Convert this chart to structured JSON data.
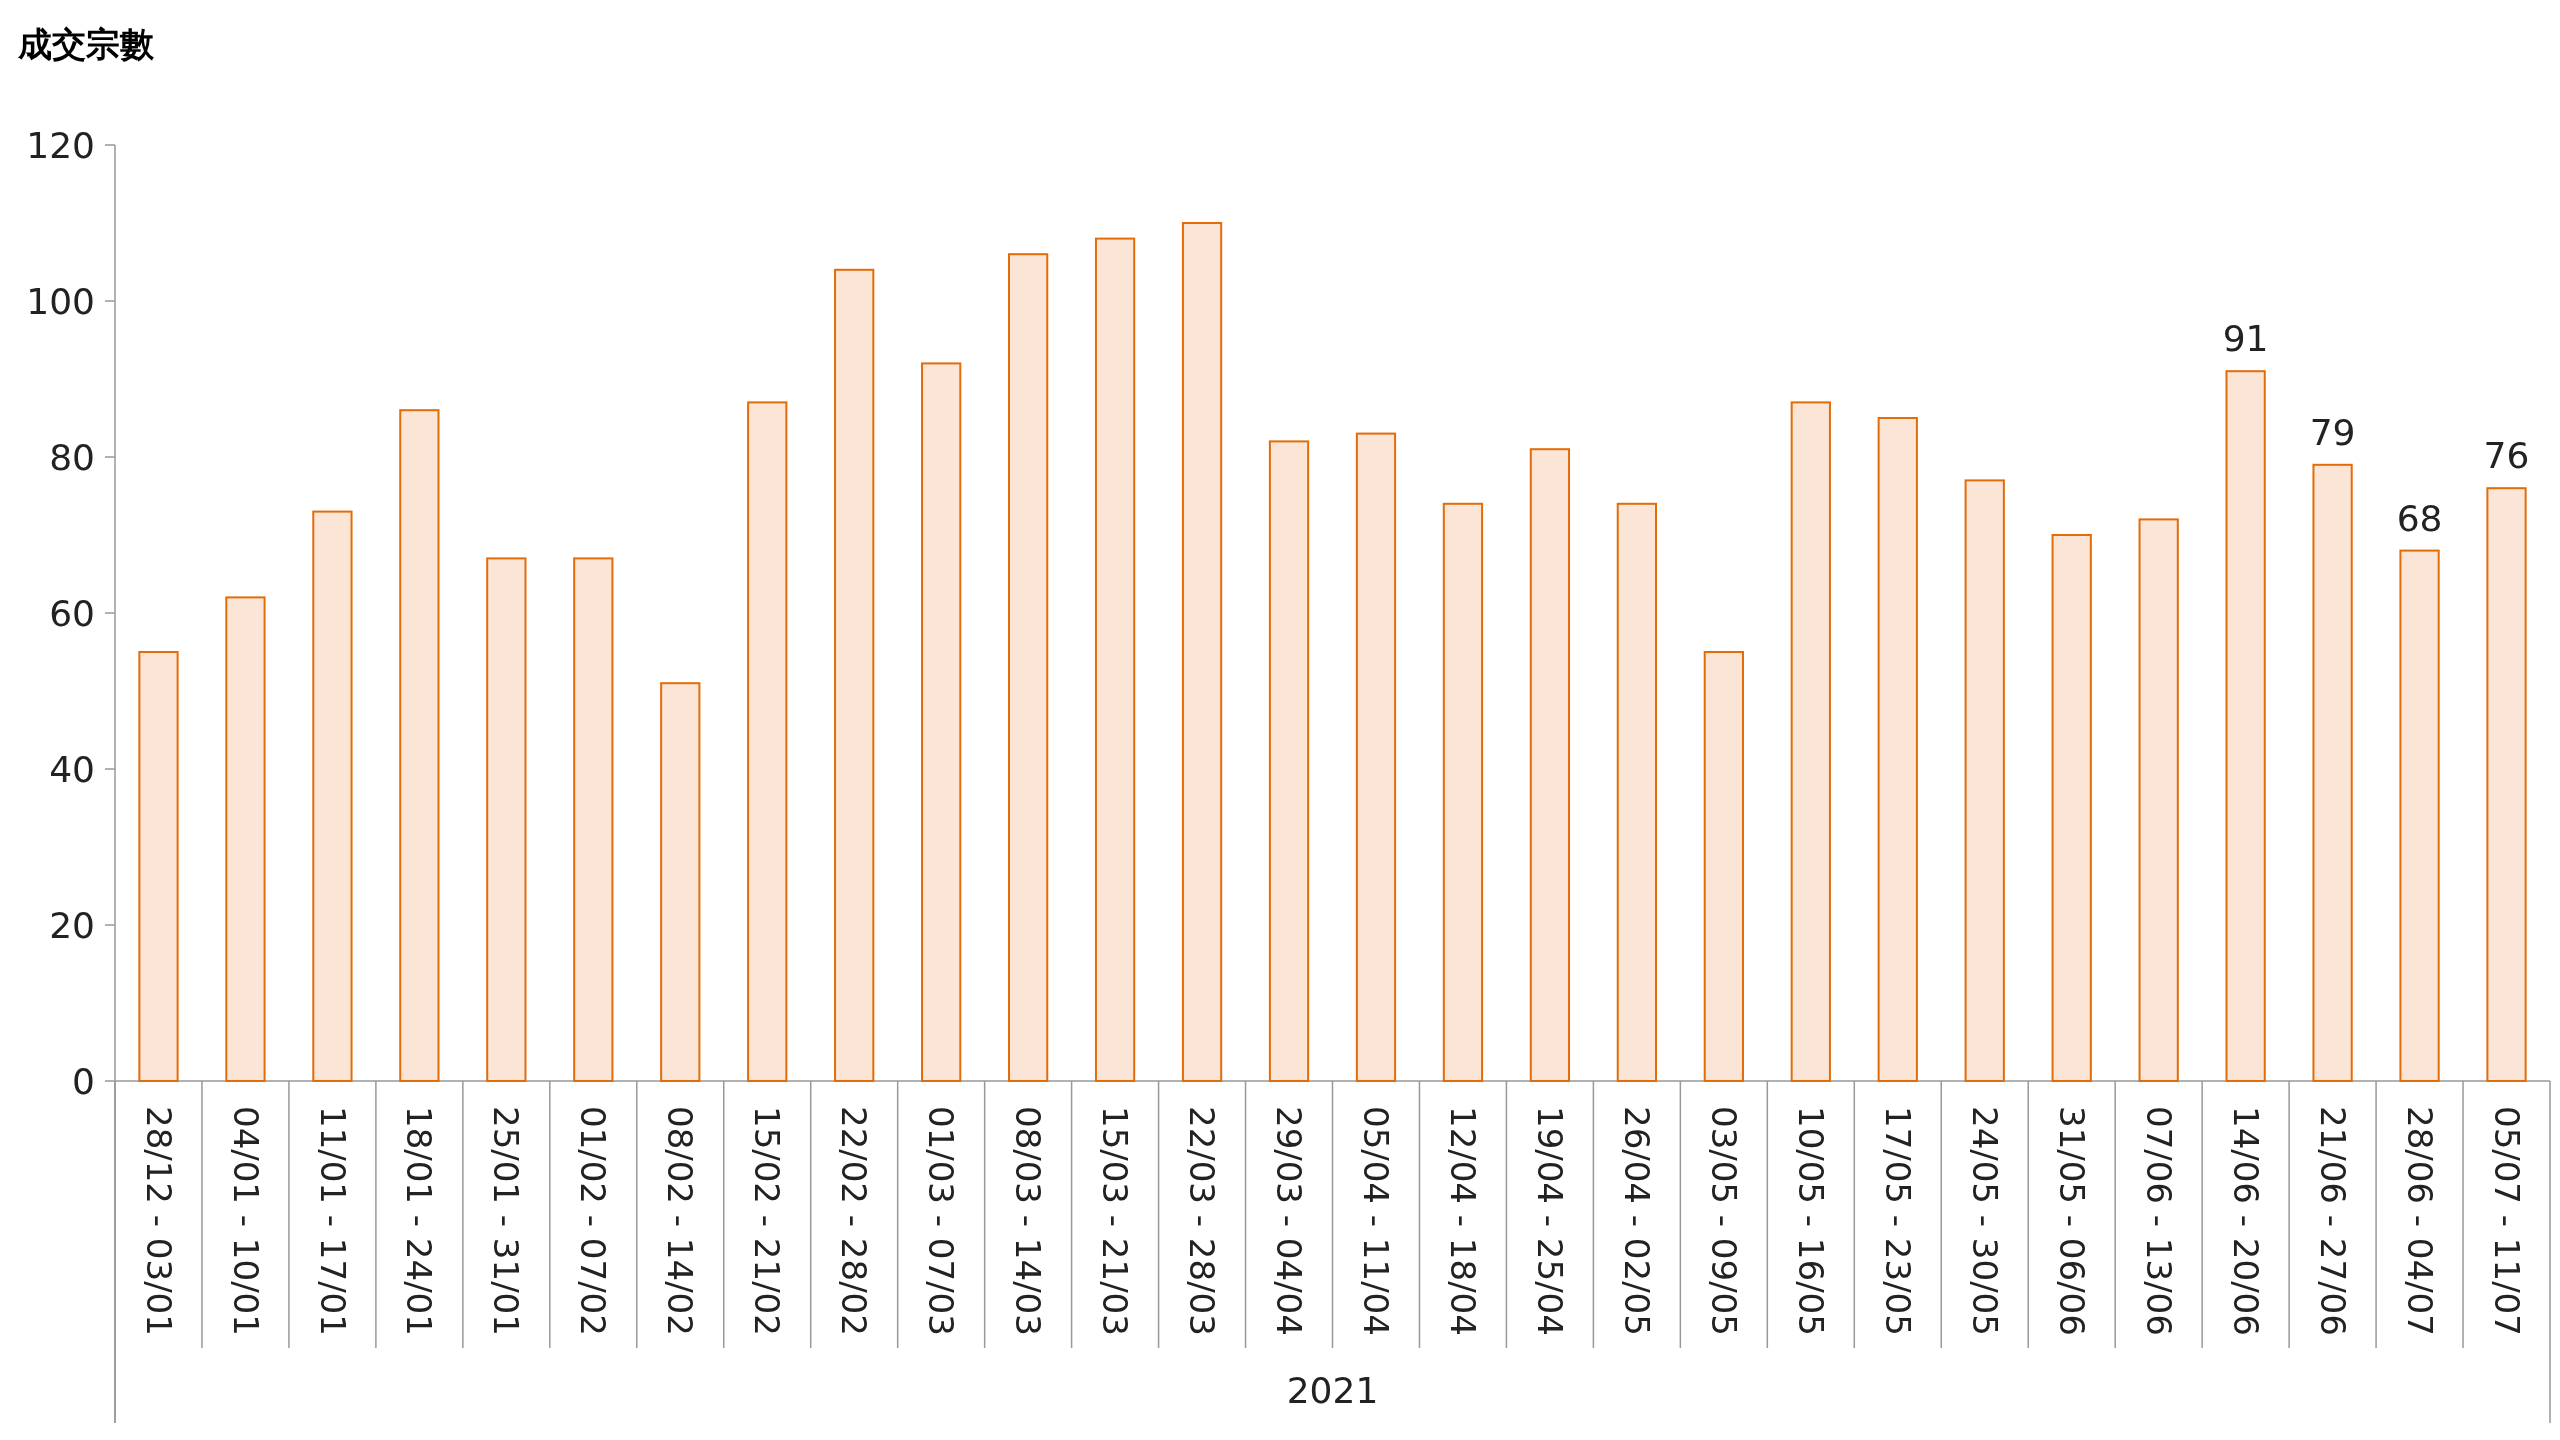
{
  "chart_data": {
    "type": "bar",
    "ylabel": "成交宗數",
    "xlabel": "2021",
    "categories": [
      "28/12 - 03/01",
      "04/01 - 10/01",
      "11/01 - 17/01",
      "18/01 - 24/01",
      "25/01 - 31/01",
      "01/02 - 07/02",
      "08/02 - 14/02",
      "15/02 - 21/02",
      "22/02 - 28/02",
      "01/03 - 07/03",
      "08/03 - 14/03",
      "15/03 - 21/03",
      "22/03 - 28/03",
      "29/03 - 04/04",
      "05/04 - 11/04",
      "12/04 - 18/04",
      "19/04 - 25/04",
      "26/04 - 02/05",
      "03/05 - 09/05",
      "10/05 - 16/05",
      "17/05 - 23/05",
      "24/05 - 30/05",
      "31/05 - 06/06",
      "07/06 - 13/06",
      "14/06 - 20/06",
      "21/06 - 27/06",
      "28/06 - 04/07",
      "05/07 - 11/07"
    ],
    "values": [
      55,
      62,
      73,
      86,
      67,
      67,
      51,
      87,
      104,
      92,
      106,
      108,
      110,
      82,
      83,
      74,
      81,
      74,
      55,
      87,
      85,
      77,
      70,
      72,
      91,
      79,
      68,
      76
    ],
    "value_labels": [
      null,
      null,
      null,
      null,
      null,
      null,
      null,
      null,
      null,
      null,
      null,
      null,
      null,
      null,
      null,
      null,
      null,
      null,
      null,
      null,
      null,
      null,
      null,
      null,
      "91",
      "79",
      "68",
      "76"
    ],
    "color": "#fbe5d6",
    "ylim": [
      0,
      120
    ],
    "yticks": [
      0,
      20,
      40,
      60,
      80,
      100,
      120
    ],
    "grid": false
  }
}
